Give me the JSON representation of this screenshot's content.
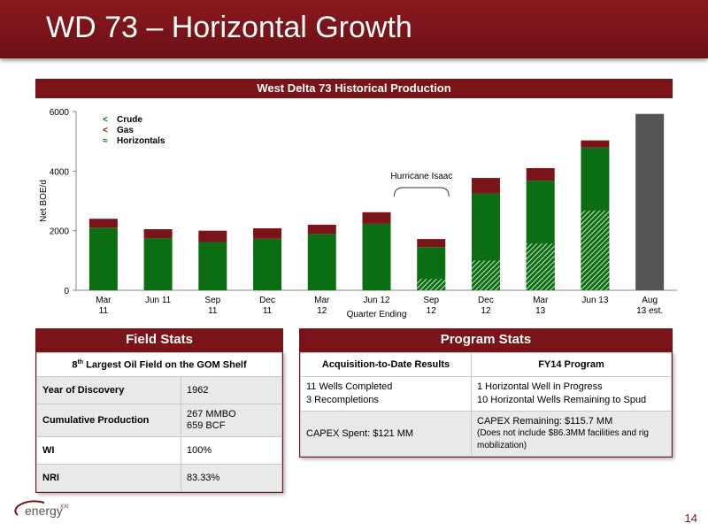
{
  "slide": {
    "title": "WD 73 – Horizontal Growth",
    "page_number": "14"
  },
  "colors": {
    "brand": "#7b1418",
    "crude": "#0b6e12",
    "gas": "#7b1418",
    "aug": "#555555"
  },
  "chart_data": {
    "type": "bar",
    "title": "West Delta 73 Historical Production",
    "ylabel": "Net BOE/d",
    "xlabel": "Quarter Ending",
    "ylim": [
      0,
      6000
    ],
    "yticks": [
      "0",
      "2000",
      "4000",
      "6000"
    ],
    "categories": [
      [
        "Mar",
        "11"
      ],
      [
        "Jun 11",
        ""
      ],
      [
        "Sep",
        "11"
      ],
      [
        "Dec",
        "11"
      ],
      [
        "Mar",
        "12"
      ],
      [
        "Jun 12",
        ""
      ],
      [
        "Sep",
        "12"
      ],
      [
        "Dec",
        "12"
      ],
      [
        "Mar",
        "13"
      ],
      [
        "Jun 13",
        ""
      ],
      [
        "Aug",
        "13 est."
      ]
    ],
    "series": [
      {
        "name": "Crude",
        "values": [
          2100,
          1750,
          1620,
          1730,
          1890,
          2230,
          1450,
          3250,
          3680,
          4790,
          null
        ]
      },
      {
        "name": "Gas",
        "values": [
          300,
          300,
          380,
          350,
          310,
          390,
          270,
          520,
          420,
          240,
          null
        ]
      },
      {
        "name": "Horizontals",
        "values": [
          0,
          0,
          0,
          0,
          0,
          0,
          380,
          1000,
          1570,
          2680,
          null
        ]
      }
    ],
    "estimate_total": [
      null,
      null,
      null,
      null,
      null,
      null,
      null,
      null,
      null,
      null,
      5920
    ],
    "annotation": "Hurricane Isaac",
    "legend_position": "top-left"
  },
  "field_stats": {
    "header": "Field Stats",
    "subheader_rank": "8",
    "subheader_sup": "th",
    "subheader_rest": " Largest Oil Field on the GOM Shelf",
    "rows": [
      {
        "label": "Year of Discovery",
        "value1": "1962",
        "value2": ""
      },
      {
        "label": "Cumulative Production",
        "value1": "267 MMBO",
        "value2": "659 BCF"
      },
      {
        "label": "WI",
        "value1": "100%",
        "value2": ""
      },
      {
        "label": "NRI",
        "value1": "83.33%",
        "value2": ""
      }
    ]
  },
  "program_stats": {
    "header": "Program Stats",
    "col1_header": "Acquisition-to-Date Results",
    "col2_header": "FY14 Program",
    "row1_col1_line1": "11 Wells Completed",
    "row1_col1_line2": "3 Recompletions",
    "row1_col2_line1": "1 Horizontal Well in Progress",
    "row1_col2_line2": "10 Horizontal Wells Remaining to Spud",
    "row2_col1": "CAPEX Spent: $121 MM",
    "row2_col2_line1": "CAPEX Remaining: $115.7 MM",
    "row2_col2_line2": "(Does not include $86.3MM facilities and rig mobilization)"
  },
  "logo": {
    "text_main": "energy",
    "text_suffix": "XXI"
  }
}
